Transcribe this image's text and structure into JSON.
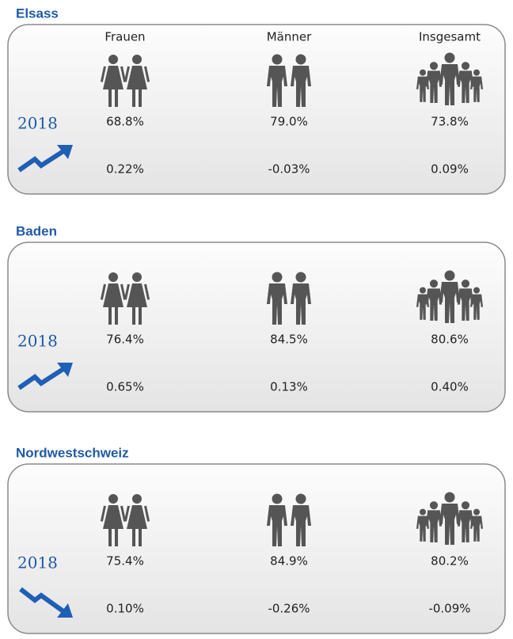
{
  "columns": [
    "Frauen",
    "Männer",
    "Insgesamt"
  ],
  "regions": [
    {
      "name": "Elsass",
      "year": "2018",
      "rates": [
        "68.8%",
        "79.0%",
        "73.8%"
      ],
      "changes": [
        "0.22%",
        "-0.03%",
        "0.09%"
      ],
      "trend": "up"
    },
    {
      "name": "Baden",
      "year": "2018",
      "rates": [
        "76.4%",
        "84.5%",
        "80.6%"
      ],
      "changes": [
        "0.65%",
        "0.13%",
        "0.40%"
      ],
      "trend": "up"
    },
    {
      "name": "Nordwestschweiz",
      "year": "2018",
      "rates": [
        "75.4%",
        "84.9%",
        "80.2%"
      ],
      "changes": [
        "0.10%",
        "-0.26%",
        "-0.09%"
      ],
      "trend": "down"
    }
  ]
}
